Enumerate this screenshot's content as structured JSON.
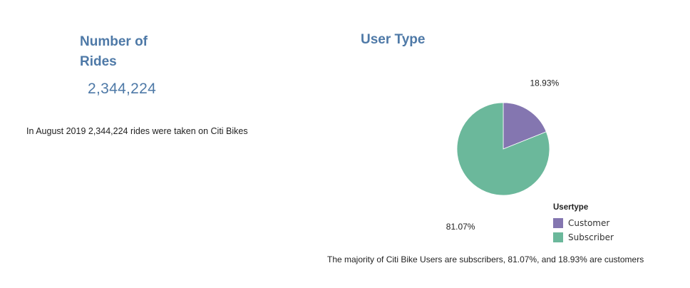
{
  "kpi": {
    "title": "Number of Rides",
    "value": "2,344,224",
    "note": "In August 2019 2,344,224 rides were taken on Citi Bikes"
  },
  "chart_data": {
    "type": "pie",
    "title": "User Type",
    "legend_title": "Usertype",
    "legend_position": "bottom-right",
    "slices": [
      {
        "label": "Customer",
        "value": 18.93,
        "display": "18.93%",
        "color": "#8476b0"
      },
      {
        "label": "Subscriber",
        "value": 81.07,
        "display": "81.07%",
        "color": "#6bb89b"
      }
    ],
    "caption": "The majority of Citi Bike Users are subscribers, 81.07%, and 18.93% are customers"
  }
}
